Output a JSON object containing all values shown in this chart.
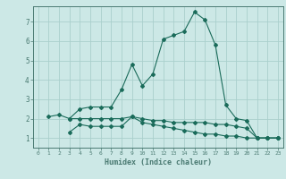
{
  "xlabel": "Humidex (Indice chaleur)",
  "bg_color": "#cce8e6",
  "grid_color": "#aacfcc",
  "line_color": "#1a6b5a",
  "axis_color": "#4a7a72",
  "xlim": [
    -0.5,
    23.5
  ],
  "ylim": [
    0.5,
    7.8
  ],
  "xticks": [
    0,
    1,
    2,
    3,
    4,
    5,
    6,
    7,
    8,
    9,
    10,
    11,
    12,
    13,
    14,
    15,
    16,
    17,
    18,
    19,
    20,
    21,
    22,
    23
  ],
  "yticks": [
    1,
    2,
    3,
    4,
    5,
    6,
    7
  ],
  "line1_x": [
    1,
    2,
    3,
    4,
    5,
    6,
    7,
    8,
    9,
    10,
    11,
    12,
    13,
    14,
    15,
    16,
    17,
    18,
    19,
    20,
    21,
    22,
    23
  ],
  "line1_y": [
    2.1,
    2.2,
    2.0,
    2.5,
    2.6,
    2.6,
    2.6,
    3.5,
    4.8,
    3.7,
    4.3,
    6.1,
    6.3,
    6.5,
    7.5,
    7.1,
    5.8,
    2.7,
    2.0,
    1.9,
    1.0,
    1.0,
    1.0
  ],
  "line2_x": [
    3,
    4,
    5,
    6,
    7,
    8,
    9,
    10,
    11,
    12,
    13,
    14,
    15,
    16,
    17,
    18,
    19,
    20,
    21,
    22,
    23
  ],
  "line2_y": [
    1.3,
    1.7,
    1.6,
    1.6,
    1.6,
    1.6,
    2.1,
    1.8,
    1.7,
    1.6,
    1.5,
    1.4,
    1.3,
    1.2,
    1.2,
    1.1,
    1.1,
    1.0,
    1.0,
    1.0,
    1.0
  ],
  "line3_x": [
    3,
    4,
    5,
    6,
    7,
    8,
    9,
    10,
    11,
    12,
    13,
    14,
    15,
    16,
    17,
    18,
    19,
    20,
    21,
    22,
    23
  ],
  "line3_y": [
    2.0,
    2.0,
    2.0,
    2.0,
    2.0,
    2.0,
    2.1,
    2.0,
    1.9,
    1.9,
    1.8,
    1.8,
    1.8,
    1.8,
    1.7,
    1.7,
    1.6,
    1.5,
    1.0,
    1.0,
    1.0
  ]
}
